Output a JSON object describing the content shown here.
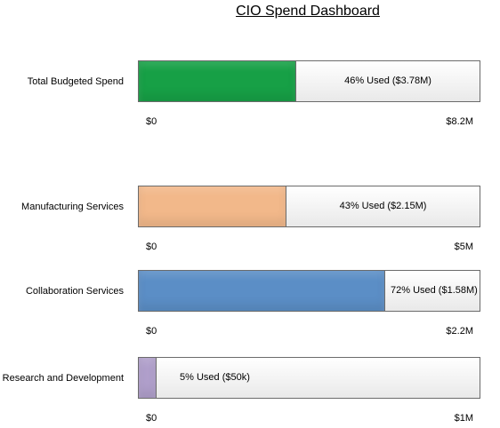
{
  "header": {
    "title": "CIO Spend Dashboard"
  },
  "chart_data": {
    "type": "bar",
    "orientation": "horizontal",
    "title": "CIO Spend Dashboard",
    "bars": [
      {
        "category": "Total Budgeted Spend",
        "used_fraction": 0.46,
        "used_label": "46% Used ($3.78M)",
        "min_label": "$0",
        "max_label": "$8.2M",
        "color": "#17a046"
      },
      {
        "category": "Manufacturing Services",
        "used_fraction": 0.43,
        "used_label": "43% Used ($2.15M)",
        "min_label": "$0",
        "max_label": "$5M",
        "color": "#f2b88a"
      },
      {
        "category": "Collaboration Services",
        "used_fraction": 0.72,
        "used_label": "72% Used ($1.58M)",
        "min_label": "$0",
        "max_label": "$2.2M",
        "color": "#5b8ec6"
      },
      {
        "category": "Research and Development",
        "used_fraction": 0.05,
        "used_label": "5% Used ($50k)",
        "min_label": "$0",
        "max_label": "$1M",
        "color": "#b09fcb"
      }
    ]
  }
}
